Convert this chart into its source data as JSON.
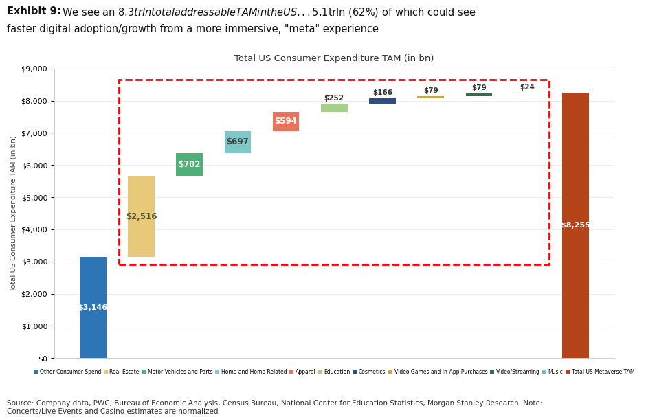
{
  "title": "Total US Consumer Expenditure TAM (in bn)",
  "exhibit_title_bold": "Exhibit 9:",
  "exhibit_title_rest1": "  We see an $8.3trln total addressable TAM in the US...$5.1trln (62%) of which could see",
  "exhibit_title_rest2": "faster digital adoption/growth from a more immersive, \"meta\" experience",
  "source_text": "Source: Company data, PWC, Bureau of Economic Analysis, Census Bureau, National Center for Education Statistics, Morgan Stanley Research. Note:\nConcerts/Live Events and Casino estimates are normalized",
  "ylabel": "Total US Consumer Expenditure TAM (in bn)",
  "ylim": [
    0,
    9000
  ],
  "yticks": [
    0,
    1000,
    2000,
    3000,
    4000,
    5000,
    6000,
    7000,
    8000,
    9000
  ],
  "ytick_labels": [
    "$0",
    "$1,000",
    "$2,000",
    "$3,000",
    "$4,000",
    "$5,000",
    "$6,000",
    "$7,000",
    "$8,000",
    "$9,000"
  ],
  "categories": [
    "Other Consumer\nSpend",
    "Real Estate",
    "Motor Vehicles\nand Parts",
    "Home and Home\nRelated",
    "Apparel",
    "Education",
    "Cosmetics",
    "Video Games and\nIn-App Purchases",
    "Video/Streaming",
    "Music",
    "Total US\nMetaverse TAM"
  ],
  "values": [
    3146,
    2516,
    702,
    697,
    594,
    252,
    166,
    79,
    79,
    24,
    8255
  ],
  "bar_labels": [
    "$3,146",
    "$2,516",
    "$702",
    "$697",
    "$594",
    "$252",
    "$166",
    "$79",
    "$79",
    "$24",
    "$8,255"
  ],
  "colors": [
    "#2e75b6",
    "#e8c97a",
    "#4faf78",
    "#7ec8c8",
    "#e8735a",
    "#a8d08d",
    "#2e4f7f",
    "#c8a84b",
    "#3d6b4f",
    "#7ab8d4",
    "#b5441b"
  ],
  "legend_labels": [
    "Other Consumer Spend",
    "Real Estate",
    "Motor Vehicles and Parts",
    "Home and Home Related",
    "Apparel",
    "Education",
    "Cosmetics",
    "Video Games and In-App Purchases",
    "Video/Streaming",
    "Music",
    "Total US Metaverse TAM"
  ],
  "background_color": "#ffffff"
}
